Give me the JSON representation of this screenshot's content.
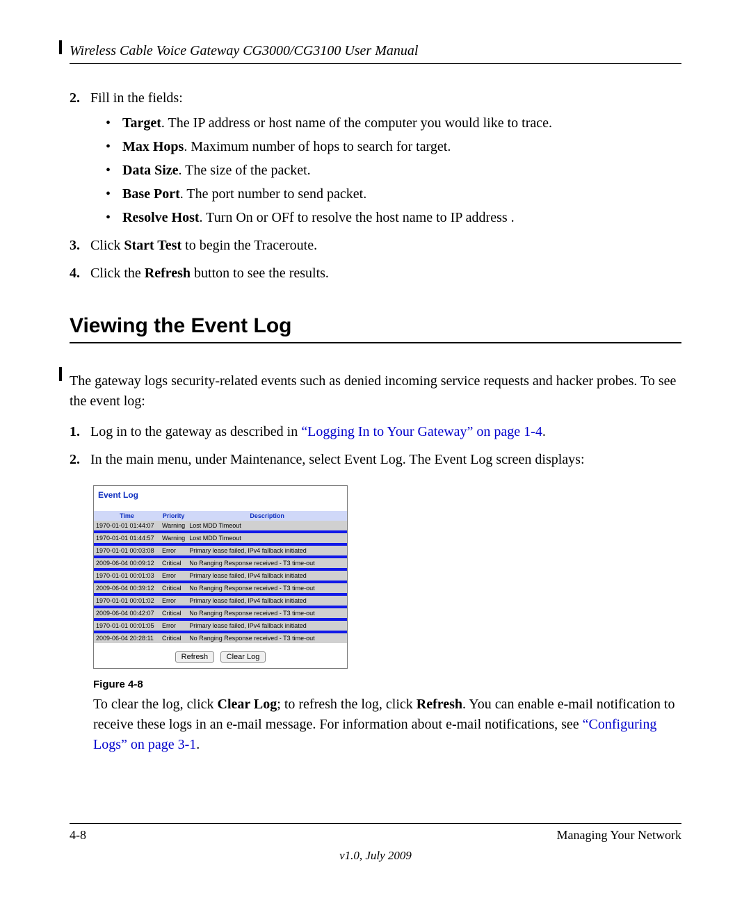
{
  "header": {
    "title": "Wireless Cable Voice Gateway CG3000/CG3100 User Manual"
  },
  "steps_a": {
    "s2_intro": "Fill in the fields:",
    "bullets": {
      "b0_label": "Target",
      "b0_text": ". The IP address or host name of the computer you would like to trace.",
      "b1_label": "Max Hops",
      "b1_text": ". Maximum number of hops to search for target.",
      "b2_label": "Data Size",
      "b2_text": ". The size of the packet.",
      "b3_label": "Base Port",
      "b3_text": ". The port number to send packet.",
      "b4_label": "Resolve Host",
      "b4_text": ". Turn On or OFf to resolve the host name to IP address ."
    },
    "s3_pre": "Click ",
    "s3_bold": "Start Test",
    "s3_post": " to begin the Traceroute.",
    "s4_pre": "Click the ",
    "s4_bold": "Refresh",
    "s4_post": " button to see the results."
  },
  "section": {
    "heading": "Viewing the Event Log"
  },
  "intro_para": "The gateway logs security-related events such as denied incoming service requests and hacker probes. To see the event log:",
  "steps_b": {
    "s1_pre": "Log in to the gateway as described in ",
    "s1_link": "“Logging In to Your Gateway” on page 1-4",
    "s1_post": ".",
    "s2_text": "In the main menu, under Maintenance, select Event Log. The Event Log screen displays:"
  },
  "eventlog": {
    "panel_title": "Event Log",
    "columns": {
      "c0": "Time",
      "c1": "Priority",
      "c2": "Description"
    },
    "rows": [
      {
        "t": "1970-01-01 01:44:07",
        "p": "Warning",
        "d": "Lost MDD Timeout",
        "cls": "row-normal"
      },
      {
        "t": "",
        "p": "",
        "d": "",
        "cls": "row-blue"
      },
      {
        "t": "1970-01-01 01:44:57",
        "p": "Warning",
        "d": "Lost MDD Timeout",
        "cls": "row-normal"
      },
      {
        "t": "",
        "p": "",
        "d": "",
        "cls": "row-blue"
      },
      {
        "t": "1970-01-01 00:03:08",
        "p": "Error",
        "d": "Primary lease failed, IPv4 fallback initiated",
        "cls": "row-normal"
      },
      {
        "t": "",
        "p": "",
        "d": "",
        "cls": "row-blue"
      },
      {
        "t": "2009-06-04 00:09:12",
        "p": "Critical",
        "d": "No Ranging Response received - T3 time-out",
        "cls": "row-normal"
      },
      {
        "t": "",
        "p": "",
        "d": "",
        "cls": "row-blue"
      },
      {
        "t": "1970-01-01 00:01:03",
        "p": "Error",
        "d": "Primary lease failed, IPv4 fallback initiated",
        "cls": "row-normal"
      },
      {
        "t": "",
        "p": "",
        "d": "",
        "cls": "row-blue"
      },
      {
        "t": "2009-06-04 00:39:12",
        "p": "Critical",
        "d": "No Ranging Response received - T3 time-out",
        "cls": "row-normal"
      },
      {
        "t": "",
        "p": "",
        "d": "",
        "cls": "row-blue"
      },
      {
        "t": "1970-01-01 00:01:02",
        "p": "Error",
        "d": "Primary lease failed, IPv4 fallback initiated",
        "cls": "row-normal"
      },
      {
        "t": "",
        "p": "",
        "d": "",
        "cls": "row-blue"
      },
      {
        "t": "2009-06-04 00:42:07",
        "p": "Critical",
        "d": "No Ranging Response received - T3 time-out",
        "cls": "row-normal"
      },
      {
        "t": "",
        "p": "",
        "d": "",
        "cls": "row-blue"
      },
      {
        "t": "1970-01-01 00:01:05",
        "p": "Error",
        "d": "Primary lease failed, IPv4 fallback initiated",
        "cls": "row-normal"
      },
      {
        "t": "",
        "p": "",
        "d": "",
        "cls": "row-blue"
      },
      {
        "t": "2009-06-04 20:28:11",
        "p": "Critical",
        "d": "No Ranging Response received - T3 time-out",
        "cls": "row-normal"
      }
    ],
    "btn_refresh": "Refresh",
    "btn_clear": "Clear Log",
    "col_widths": {
      "c0": "95px",
      "c1": "38px",
      "c2": "auto"
    },
    "header_bg": "#d0d8f8",
    "row_normal_bg": "#d0d0d0",
    "row_blue_bg": "#1018e8",
    "row_blue_fg": "#e04000"
  },
  "figure": {
    "caption": "Figure 4-8",
    "text_pre": "To clear the log, click ",
    "text_b1": "Clear Log",
    "text_mid1": "; to refresh the log, click ",
    "text_b2": "Refresh",
    "text_post1": ". You can enable e-mail notification to receive these logs in an e-mail message. For information about e-mail notifications, see ",
    "text_link": "“Configuring Logs” on page 3-1",
    "text_post2": "."
  },
  "footer": {
    "left": "4-8",
    "right": "Managing Your Network",
    "version": "v1.0, July 2009"
  }
}
